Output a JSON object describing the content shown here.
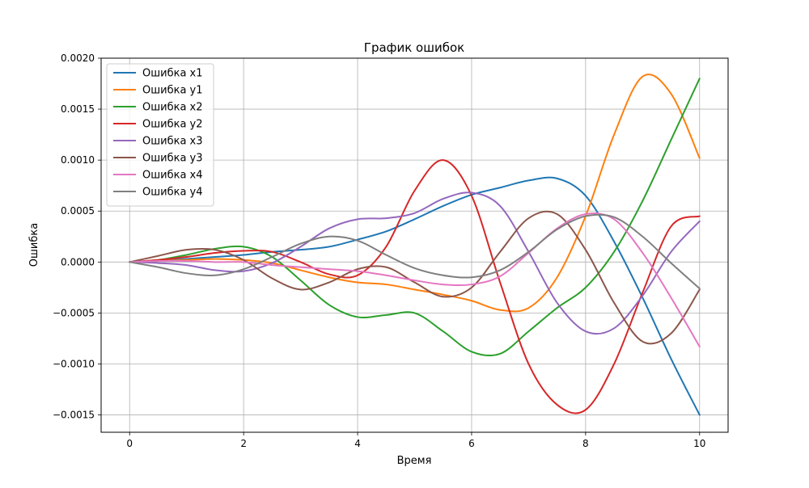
{
  "chart_data": {
    "type": "line",
    "title": "График ошибок",
    "xlabel": "Время",
    "ylabel": "Ошибка",
    "xlim": [
      -0.5,
      10.5
    ],
    "ylim": [
      -0.00167,
      0.002
    ],
    "xticks": [
      0,
      2,
      4,
      6,
      8,
      10
    ],
    "xtick_labels": [
      "0",
      "2",
      "4",
      "6",
      "8",
      "10"
    ],
    "yticks": [
      -0.0015,
      -0.001,
      -0.0005,
      0.0,
      0.0005,
      0.001,
      0.0015,
      0.002
    ],
    "ytick_labels": [
      "−0.0015",
      "−0.0010",
      "−0.0005",
      "0.0000",
      "0.0005",
      "0.0010",
      "0.0015",
      "0.0020"
    ],
    "grid": true,
    "legend_position": "top-left",
    "x": [
      0,
      0.5,
      1,
      1.5,
      2,
      2.5,
      3,
      3.5,
      4,
      4.5,
      5,
      5.5,
      6,
      6.5,
      7,
      7.5,
      8,
      8.5,
      9,
      9.5,
      10
    ],
    "series": [
      {
        "name": "Ошибка x1",
        "color": "#1f77b4",
        "values": [
          0,
          1e-05,
          3e-05,
          5e-05,
          7e-05,
          0.0001,
          0.00012,
          0.00015,
          0.00022,
          0.0003,
          0.00042,
          0.00055,
          0.00066,
          0.00073,
          0.0008,
          0.00082,
          0.00065,
          0.0002,
          -0.00035,
          -0.00095,
          -0.0015
        ]
      },
      {
        "name": "Ошибка y1",
        "color": "#ff7f0e",
        "values": [
          0,
          1e-05,
          2e-05,
          3e-05,
          2e-05,
          -1e-05,
          -8e-05,
          -0.00015,
          -0.0002,
          -0.00022,
          -0.00027,
          -0.00032,
          -0.00038,
          -0.00047,
          -0.00045,
          -0.00015,
          0.00045,
          0.00125,
          0.00182,
          0.00165,
          0.00102
        ]
      },
      {
        "name": "Ошибка x2",
        "color": "#2ca02c",
        "values": [
          0,
          2e-05,
          7e-05,
          0.00013,
          0.00015,
          5e-05,
          -0.00018,
          -0.00042,
          -0.00054,
          -0.00052,
          -0.0005,
          -0.00068,
          -0.00088,
          -0.0009,
          -0.00068,
          -0.00045,
          -0.00025,
          0.0001,
          0.0006,
          0.0012,
          0.0018
        ]
      },
      {
        "name": "Ошибка y2",
        "color": "#d62728",
        "values": [
          0,
          2e-05,
          5e-05,
          9e-05,
          0.00011,
          0.0001,
          0.0,
          -0.00012,
          -0.00013,
          0.00015,
          0.0007,
          0.001,
          0.00065,
          -0.0002,
          -0.001,
          -0.0014,
          -0.00145,
          -0.001,
          -0.0003,
          0.00035,
          0.00045
        ]
      },
      {
        "name": "Ошибка x3",
        "color": "#9467bd",
        "values": [
          0,
          -1e-05,
          -3e-05,
          -8e-05,
          -9e-05,
          -1e-05,
          0.00015,
          0.00033,
          0.00042,
          0.00043,
          0.00048,
          0.00062,
          0.00068,
          0.00055,
          0.0001,
          -0.0004,
          -0.00068,
          -0.00065,
          -0.00033,
          0.0001,
          0.0004
        ]
      },
      {
        "name": "Ошибка y3",
        "color": "#8c564b",
        "values": [
          0,
          6e-05,
          0.00012,
          0.00012,
          2e-05,
          -0.00016,
          -0.00027,
          -0.0002,
          -7e-05,
          -5e-05,
          -0.0002,
          -0.00034,
          -0.00025,
          0.0001,
          0.00043,
          0.00047,
          0.00012,
          -0.0004,
          -0.00078,
          -0.0007,
          -0.00027
        ]
      },
      {
        "name": "Ошибка x4",
        "color": "#e377c2",
        "values": [
          0,
          1e-05,
          1e-05,
          0.0,
          0.0,
          -3e-05,
          -5e-05,
          -7e-05,
          -9e-05,
          -0.00013,
          -0.00018,
          -0.00022,
          -0.00022,
          -0.00014,
          9e-05,
          0.00033,
          0.00047,
          0.00042,
          9e-05,
          -0.00035,
          -0.00083
        ]
      },
      {
        "name": "Ошибка y4",
        "color": "#7f7f7f",
        "values": [
          0,
          -5e-05,
          -0.00011,
          -0.00013,
          -7e-05,
          5e-05,
          0.00018,
          0.00025,
          0.00021,
          7e-05,
          -6e-05,
          -0.00013,
          -0.00015,
          -8e-05,
          0.0001,
          0.00032,
          0.00045,
          0.00044,
          0.00025,
          -1e-05,
          -0.00026
        ]
      }
    ]
  }
}
